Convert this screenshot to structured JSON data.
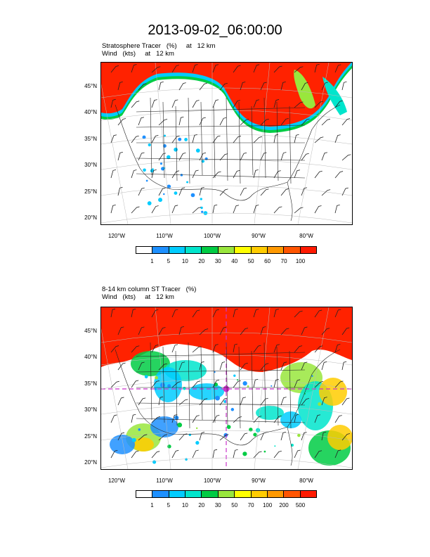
{
  "page_title": "2013-09-02_06:00:00",
  "panels": [
    {
      "title_line1": "Stratosphere Tracer   (%)     at   12 km",
      "title_line2": "Wind   (kts)     at   12 km",
      "lat_labels": [
        "45°N",
        "40°N",
        "35°N",
        "30°N",
        "25°N",
        "20°N"
      ],
      "lon_labels": [
        "120°W",
        "110°W",
        "100°W",
        "90°W",
        "80°W"
      ],
      "colorbar_levels": [
        "1",
        "5",
        "10",
        "20",
        "30",
        "40",
        "50",
        "60",
        "70",
        "100"
      ]
    },
    {
      "title_line1": "8-14 km column ST Tracer   (%)",
      "title_line2": "Wind   (kts)     at   12 km",
      "lat_labels": [
        "45°N",
        "40°N",
        "35°N",
        "30°N",
        "25°N",
        "20°N"
      ],
      "lon_labels": [
        "120°W",
        "110°W",
        "100°W",
        "90°W",
        "80°W"
      ],
      "colorbar_levels": [
        "1",
        "5",
        "10",
        "20",
        "30",
        "50",
        "70",
        "100",
        "200",
        "500"
      ]
    }
  ],
  "colorbar_colors": [
    "#ffffff",
    "#1e90ff",
    "#00ccff",
    "#00e5cc",
    "#00cc44",
    "#99e63d",
    "#ffff00",
    "#ffcc00",
    "#ff9900",
    "#ff5500",
    "#ff1a00"
  ],
  "colors": {
    "tracer_high": "#ff2200",
    "marker": "#cc33cc"
  }
}
